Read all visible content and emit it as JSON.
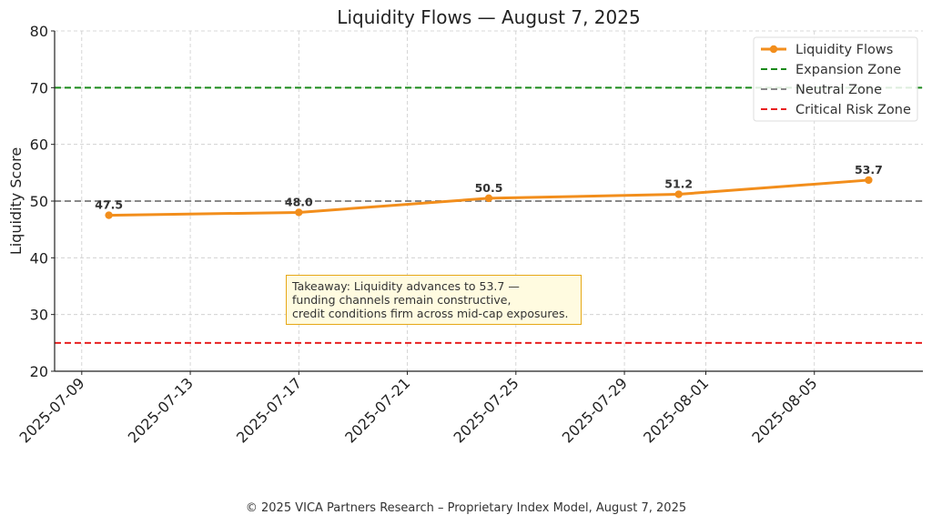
{
  "chart_data": {
    "type": "line",
    "title": "Liquidity Flows — August 7, 2025",
    "xlabel": "",
    "ylabel": "Liquidity Score",
    "ylim": [
      20,
      80
    ],
    "xlim": [
      "2025-07-08",
      "2025-08-09"
    ],
    "yticks": [
      20,
      30,
      40,
      50,
      60,
      70,
      80
    ],
    "xticks": [
      "2025-07-09",
      "2025-07-13",
      "2025-07-17",
      "2025-07-21",
      "2025-07-25",
      "2025-07-29",
      "2025-08-01",
      "2025-08-05"
    ],
    "grid": true,
    "legend_position": "top-right",
    "series": [
      {
        "name": "Liquidity Flows",
        "color": "#f28e1c",
        "x": [
          "2025-07-10",
          "2025-07-17",
          "2025-07-24",
          "2025-07-31",
          "2025-08-07"
        ],
        "y": [
          47.5,
          48.0,
          50.5,
          51.2,
          53.7
        ],
        "labels": [
          "47.5",
          "48.0",
          "50.5",
          "51.2",
          "53.7"
        ]
      }
    ],
    "reference_lines": [
      {
        "name": "Expansion Zone",
        "y": 70,
        "color": "#1a8a1a"
      },
      {
        "name": "Neutral Zone",
        "y": 50,
        "color": "#888888"
      },
      {
        "name": "Critical Risk Zone",
        "y": 25,
        "color": "#e82020"
      }
    ],
    "annotation": {
      "lines": [
        "Takeaway: Liquidity advances to 53.7 —",
        "funding channels remain constructive,",
        "credit conditions firm across mid-cap exposures."
      ]
    }
  },
  "footer": "© 2025 VICA Partners Research – Proprietary Index Model, August 7, 2025"
}
